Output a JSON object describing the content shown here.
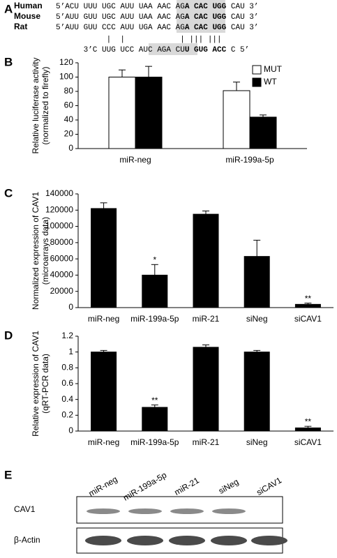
{
  "panel_a": {
    "label": "A",
    "rows": [
      {
        "species": "Human",
        "prefix": "5’ACU UUU UGC AUU UAA AAC AG",
        "motif": "A CAC UGG",
        "suffix": " CAU 3’"
      },
      {
        "species": "Mouse",
        "prefix": "5’AUU GUU UGC AUU UAA AAC AG",
        "motif": "A CAC UGG",
        "suffix": " CAU 3’"
      },
      {
        "species": "Rat",
        "prefix": "5’AUU GUU CCC AUU UGA AAC AG",
        "motif": "A CAC UGG",
        "suffix": " CAU 3’"
      }
    ],
    "pairing": "           |  |            | ||| |||",
    "mirna": {
      "prefix": "3’C UUG UCC AUC AGA CU",
      "motif": "U GUG ACC",
      "suffix": " C 5’"
    }
  },
  "chart_data": [
    {
      "type": "bar",
      "panel_label": "B",
      "ylabel": [
        "Relative luciferase activity",
        "(normalized to firefly)"
      ],
      "categories": [
        "miR-neg",
        "miR-199a-5p"
      ],
      "series": [
        {
          "name": "MUT",
          "color": "#ffffff",
          "values": [
            100,
            81
          ],
          "errors": [
            10,
            12
          ]
        },
        {
          "name": "WT",
          "color": "#000000",
          "values": [
            100,
            44
          ],
          "errors": [
            15,
            3
          ]
        }
      ],
      "ylim": [
        0,
        120
      ],
      "yticks": [
        0,
        20,
        40,
        60,
        80,
        100,
        120
      ],
      "legend": "upper right"
    },
    {
      "type": "bar",
      "panel_label": "C",
      "ylabel": [
        "Normalized expression of CAV1",
        "(microarrays data)"
      ],
      "categories": [
        "miR-neg",
        "miR-199a-5p",
        "miR-21",
        "siNeg",
        "siCAV1"
      ],
      "series": [
        {
          "color": "#000000",
          "values": [
            122000,
            40000,
            115000,
            63000,
            4000
          ],
          "errors": [
            7000,
            13000,
            4000,
            20000,
            1500
          ]
        }
      ],
      "annotations": [
        null,
        "*",
        null,
        null,
        "**"
      ],
      "ylim": [
        0,
        140000
      ],
      "yticks": [
        0,
        20000,
        40000,
        60000,
        80000,
        100000,
        120000,
        140000
      ]
    },
    {
      "type": "bar",
      "panel_label": "D",
      "ylabel": [
        "Relative expression of CAV1",
        "(qRT-PCR data)"
      ],
      "categories": [
        "miR-neg",
        "miR-199a-5p",
        "miR-21",
        "siNeg",
        "siCAV1"
      ],
      "series": [
        {
          "color": "#000000",
          "values": [
            1,
            0.3,
            1.06,
            1,
            0.04
          ],
          "errors": [
            0.02,
            0.03,
            0.03,
            0.02,
            0.02
          ]
        }
      ],
      "annotations": [
        null,
        "**",
        null,
        null,
        "**"
      ],
      "ylim": [
        0,
        1.2
      ],
      "yticks": [
        0,
        0.2,
        0.4,
        0.6,
        0.8,
        1,
        1.2
      ]
    }
  ],
  "panel_e": {
    "label": "E",
    "lanes": [
      "miR-neg",
      "miR-199a-5p",
      "miR-21",
      "siNeg",
      "siCAV1"
    ],
    "rows": [
      "CAV1",
      "β-Actin"
    ]
  }
}
